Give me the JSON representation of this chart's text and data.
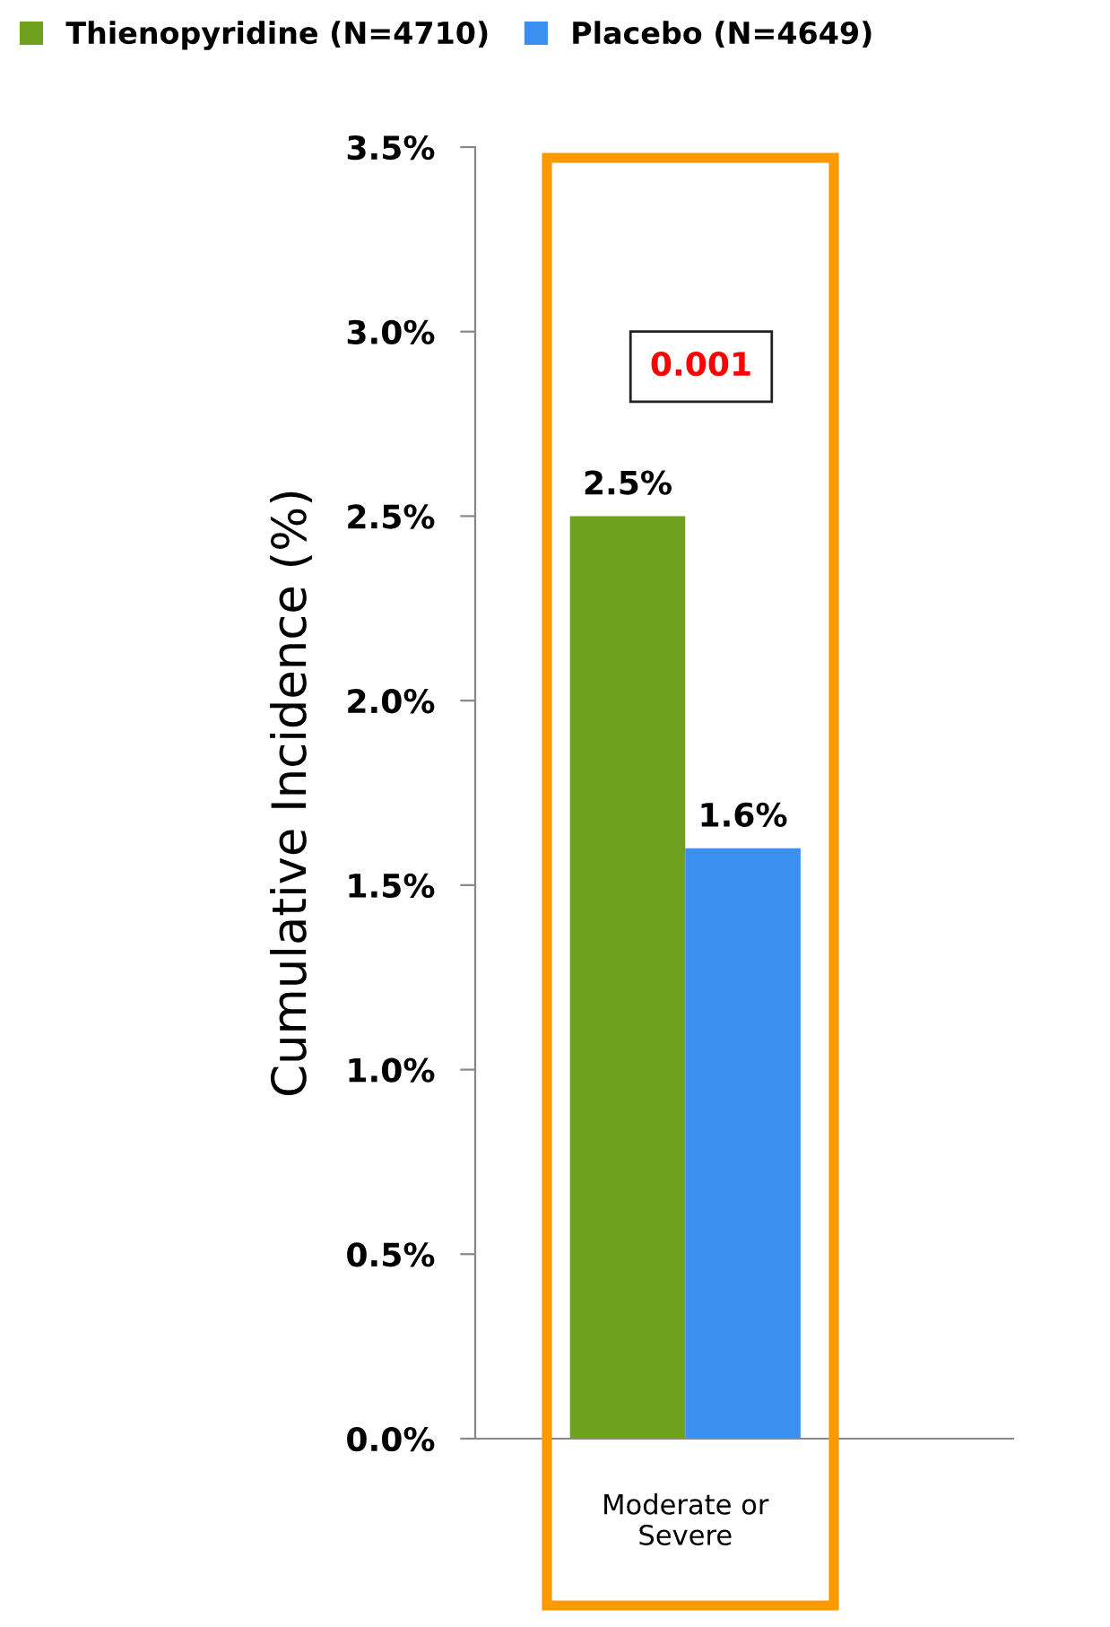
{
  "chart_data": {
    "type": "bar",
    "ylabel": "Cumulative Incidence (%)",
    "categories": [
      "Moderate or\nSevere"
    ],
    "series": [
      {
        "name": "Thienopyridine (N=4710)",
        "color": "#6fa01e",
        "values": [
          2.5
        ],
        "value_labels": [
          "2.5%"
        ]
      },
      {
        "name": "Placebo (N=4649)",
        "color": "#3a8fef",
        "values": [
          1.6
        ],
        "value_labels": [
          "1.6%"
        ]
      }
    ],
    "ylim": [
      0,
      3.5
    ],
    "yticks": [
      {
        "value": 0,
        "label": "0.0%"
      },
      {
        "value": 0.5,
        "label": "0.5%"
      },
      {
        "value": 1.0,
        "label": "1.0%"
      },
      {
        "value": 1.5,
        "label": "1.5%"
      },
      {
        "value": 2.0,
        "label": "2.0%"
      },
      {
        "value": 2.5,
        "label": "2.5%"
      },
      {
        "value": 3.0,
        "label": "3.0%"
      },
      {
        "value": 3.5,
        "label": "3.5%"
      }
    ],
    "annotations": [
      "0.001"
    ],
    "legend": "top left",
    "grid": false
  }
}
